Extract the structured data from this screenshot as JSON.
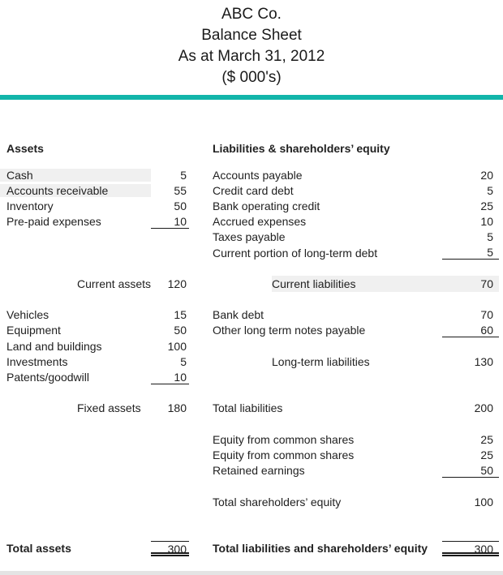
{
  "header": {
    "company": "ABC Co.",
    "title": "Balance Sheet",
    "date_line": "As at March 31, 2012",
    "units_line": "($ 000's)"
  },
  "colors": {
    "accent_rule": "#12b5aa",
    "row_highlight": "#f0f0f0",
    "text": "#212121"
  },
  "assets": {
    "section_title": "Assets",
    "current": {
      "items": [
        {
          "label": "Cash",
          "value": 5
        },
        {
          "label": "Accounts receivable",
          "value": 55
        },
        {
          "label": "Inventory",
          "value": 50
        },
        {
          "label": "Pre-paid expenses",
          "value": 10
        }
      ],
      "subtotal": {
        "label": "Current assets",
        "value": 120
      }
    },
    "fixed": {
      "items": [
        {
          "label": "Vehicles",
          "value": 15
        },
        {
          "label": "Equipment",
          "value": 50
        },
        {
          "label": "Land and buildings",
          "value": 100
        },
        {
          "label": "Investments",
          "value": 5
        },
        {
          "label": "Patents/goodwill",
          "value": 10
        }
      ],
      "subtotal": {
        "label": "Fixed assets",
        "value": 180
      }
    },
    "total": {
      "label": "Total assets",
      "value": 300
    }
  },
  "liabilities_equity": {
    "section_title": "Liabilities & shareholders’ equity",
    "current": {
      "items": [
        {
          "label": "Accounts payable",
          "value": 20
        },
        {
          "label": "Credit card debt",
          "value": 5
        },
        {
          "label": "Bank operating credit",
          "value": 25
        },
        {
          "label": "Accrued expenses",
          "value": 10
        },
        {
          "label": "Taxes payable",
          "value": 5
        },
        {
          "label": "Current portion of long-term debt",
          "value": 5
        }
      ],
      "subtotal": {
        "label": "Current liabilities",
        "value": 70
      }
    },
    "long_term": {
      "items": [
        {
          "label": "Bank debt",
          "value": 70
        },
        {
          "label": "Other long term notes payable",
          "value": 60
        }
      ],
      "subtotal": {
        "label": "Long-term liabilities",
        "value": 130
      }
    },
    "total_liabilities": {
      "label": "Total liabilities",
      "value": 200
    },
    "equity": {
      "items": [
        {
          "label": "Equity from common shares",
          "value": 25
        },
        {
          "label": "Equity from common shares",
          "value": 25
        },
        {
          "label": "Retained earnings",
          "value": 50
        }
      ],
      "subtotal": {
        "label": "Total shareholders’ equity",
        "value": 100
      }
    },
    "total": {
      "label": "Total liabilities and shareholders’ equity",
      "value": 300
    }
  }
}
